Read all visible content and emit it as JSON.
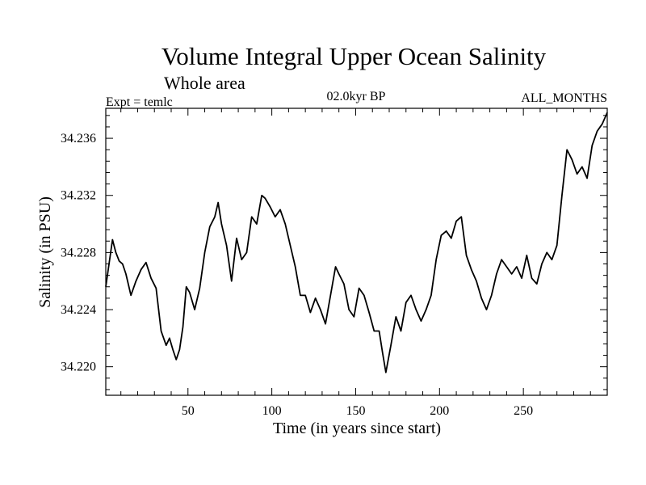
{
  "chart_data": {
    "type": "line",
    "title": "Volume Integral Upper Ocean Salinity",
    "subtitle": "Whole area",
    "left_annotation": "Expt = temlc",
    "center_annotation": "02.0kyr BP",
    "right_annotation": "ALL_MONTHS",
    "xlabel": "Time (in years since start)",
    "ylabel": "Salinity (in PSU)",
    "xlim": [
      1,
      300
    ],
    "ylim": [
      34.218,
      34.2381
    ],
    "xticks": [
      50,
      100,
      150,
      200,
      250
    ],
    "xtick_labels": [
      "50",
      "100",
      "150",
      "200",
      "250"
    ],
    "yticks": [
      34.22,
      34.224,
      34.228,
      34.232,
      34.236
    ],
    "ytick_labels": [
      "34.220",
      "34.224",
      "34.228",
      "34.232",
      "34.236"
    ],
    "grid": false,
    "series": [
      {
        "name": "salinity",
        "x": [
          1,
          5,
          7,
          9,
          11,
          13,
          16,
          19,
          22,
          25,
          28,
          31,
          34,
          37,
          39,
          41,
          43,
          45,
          47,
          49,
          51,
          54,
          57,
          60,
          63,
          66,
          68,
          70,
          73,
          76,
          79,
          82,
          85,
          88,
          91,
          94,
          96,
          99,
          102,
          105,
          108,
          111,
          114,
          117,
          120,
          123,
          126,
          129,
          132,
          135,
          138,
          140,
          143,
          146,
          149,
          152,
          155,
          158,
          161,
          164,
          166,
          168,
          171,
          174,
          177,
          180,
          183,
          186,
          189,
          192,
          195,
          198,
          201,
          204,
          207,
          210,
          213,
          216,
          219,
          222,
          225,
          228,
          231,
          234,
          237,
          240,
          243,
          246,
          249,
          252,
          255,
          258,
          261,
          264,
          267,
          270,
          273,
          276,
          279,
          282,
          285,
          288,
          291,
          294,
          297,
          300
        ],
        "y": [
          34.2256,
          34.2289,
          34.228,
          34.2274,
          34.2272,
          34.2265,
          34.225,
          34.226,
          34.2268,
          34.2273,
          34.2262,
          34.2255,
          34.2225,
          34.2215,
          34.222,
          34.2212,
          34.2205,
          34.2212,
          34.2228,
          34.2256,
          34.2252,
          34.224,
          34.2255,
          34.228,
          34.2298,
          34.2305,
          34.2315,
          34.23,
          34.2285,
          34.226,
          34.229,
          34.2275,
          34.228,
          34.2305,
          34.23,
          34.232,
          34.2318,
          34.2312,
          34.2305,
          34.231,
          34.23,
          34.2285,
          34.227,
          34.225,
          34.225,
          34.2238,
          34.2248,
          34.224,
          34.223,
          34.225,
          34.227,
          34.2265,
          34.2258,
          34.224,
          34.2235,
          34.2255,
          34.225,
          34.2238,
          34.2225,
          34.2225,
          34.221,
          34.2196,
          34.2215,
          34.2235,
          34.2225,
          34.2245,
          34.225,
          34.224,
          34.2232,
          34.224,
          34.225,
          34.2275,
          34.2292,
          34.2295,
          34.229,
          34.2302,
          34.2305,
          34.2278,
          34.2268,
          34.226,
          34.2248,
          34.224,
          34.225,
          34.2265,
          34.2275,
          34.227,
          34.2265,
          34.227,
          34.2262,
          34.2278,
          34.2262,
          34.2258,
          34.2272,
          34.228,
          34.2275,
          34.2285,
          34.232,
          34.2352,
          34.2345,
          34.2335,
          34.234,
          34.2332,
          34.2355,
          34.2365,
          34.237,
          34.2378
        ]
      }
    ]
  }
}
